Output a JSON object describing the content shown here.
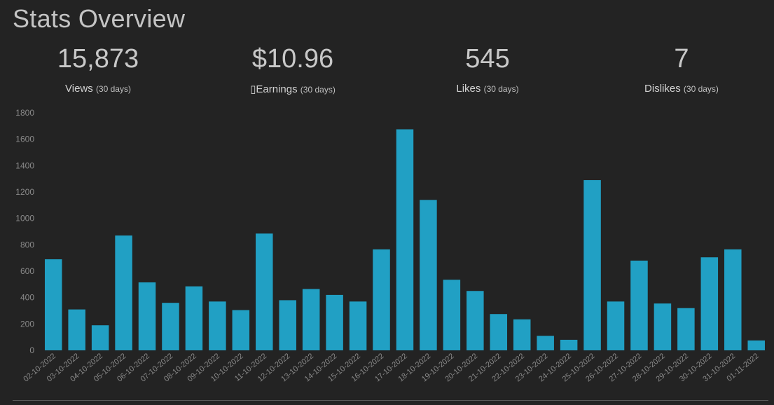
{
  "title": "Stats Overview",
  "stats": [
    {
      "value": "15,873",
      "label": "Views",
      "period": "(30 days)"
    },
    {
      "value": "$10.96",
      "label": "▯Earnings",
      "period": "(30 days)"
    },
    {
      "value": "545",
      "label": "Likes",
      "period": "(30 days)"
    },
    {
      "value": "7",
      "label": "Dislikes",
      "period": "(30 days)"
    }
  ],
  "colors": {
    "bar": "#21a0c4",
    "background": "#232323",
    "text": "#c8c8c8",
    "tick": "#8a8a8a"
  },
  "chart_data": {
    "type": "bar",
    "categories": [
      "02-10-2022",
      "03-10-2022",
      "04-10-2022",
      "05-10-2022",
      "06-10-2022",
      "07-10-2022",
      "08-10-2022",
      "09-10-2022",
      "10-10-2022",
      "11-10-2022",
      "12-10-2022",
      "13-10-2022",
      "14-10-2022",
      "15-10-2022",
      "16-10-2022",
      "17-10-2022",
      "18-10-2022",
      "19-10-2022",
      "20-10-2022",
      "21-10-2022",
      "22-10-2022",
      "23-10-2022",
      "24-10-2022",
      "25-10-2022",
      "26-10-2022",
      "27-10-2022",
      "28-10-2022",
      "29-10-2022",
      "30-10-2022",
      "31-10-2022",
      "01-11-2022"
    ],
    "values": [
      690,
      310,
      190,
      870,
      515,
      360,
      485,
      370,
      305,
      885,
      380,
      465,
      420,
      370,
      765,
      1675,
      1140,
      535,
      450,
      275,
      235,
      110,
      80,
      1290,
      370,
      680,
      355,
      320,
      705,
      765,
      75
    ],
    "yticks": [
      0,
      200,
      400,
      600,
      800,
      1000,
      1200,
      1400,
      1600,
      1800
    ],
    "ylim": [
      0,
      1800
    ],
    "grid": false,
    "legend": "none"
  }
}
